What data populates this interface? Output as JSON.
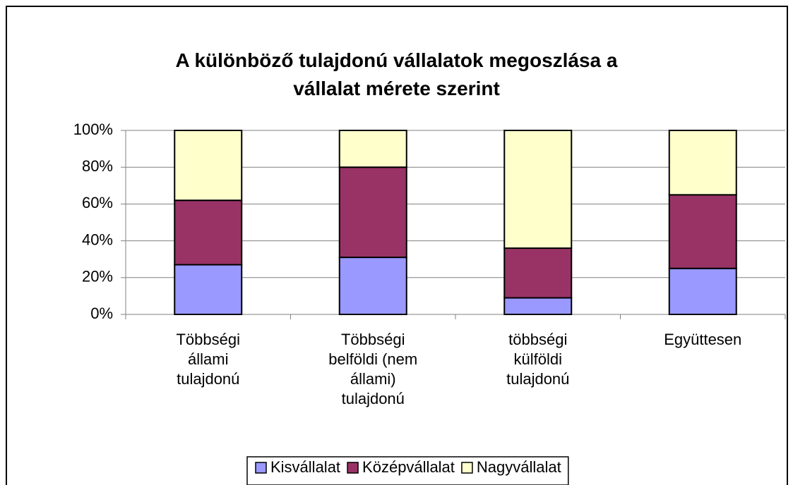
{
  "chart_data": {
    "type": "stacked_bar_percent",
    "title": "A különböző tulajdonú vállalatok megoszlása a\nvállalat mérete szerint",
    "categories": [
      "Többségi\nállami\ntulajdonú",
      "Többségi\nbelföldi (nem\nállami)\ntulajdonú",
      "többségi\nkülföldi\ntulajdonú",
      "Együttesen"
    ],
    "series": [
      {
        "name": "Kisvállalat",
        "color": "#9999ff",
        "values": [
          27,
          31,
          9,
          25
        ]
      },
      {
        "name": "Középvállalat",
        "color": "#993366",
        "values": [
          35,
          49,
          27,
          40
        ]
      },
      {
        "name": "Nagyvállalat",
        "color": "#ffffcc",
        "values": [
          38,
          20,
          64,
          35
        ]
      }
    ],
    "ylim": [
      0,
      100
    ],
    "yticks": [
      {
        "value": 0,
        "label": "0%"
      },
      {
        "value": 20,
        "label": "20%"
      },
      {
        "value": 40,
        "label": "40%"
      },
      {
        "value": 60,
        "label": "60%"
      },
      {
        "value": 80,
        "label": "80%"
      },
      {
        "value": 100,
        "label": "100%"
      }
    ],
    "grid": true,
    "legend": "bottom"
  }
}
